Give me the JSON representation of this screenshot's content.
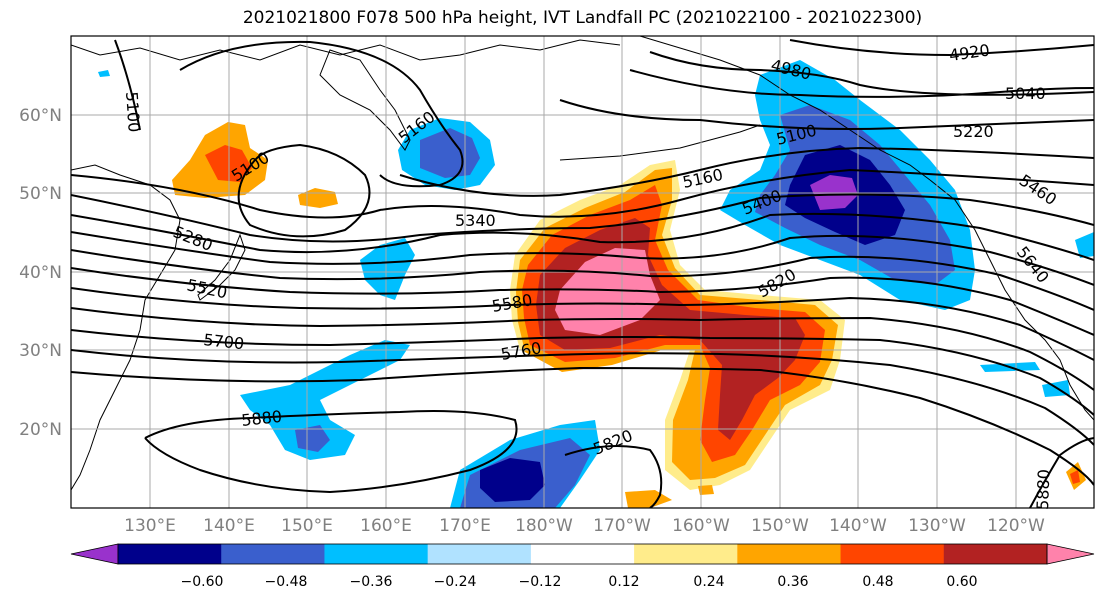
{
  "title": "2021021800 F078 500 hPa height, IVT Landfall PC (2021022100 - 2021022300)",
  "lat_labels": [
    "60°N",
    "50°N",
    "40°N",
    "30°N",
    "20°N"
  ],
  "lon_labels": [
    "130°E",
    "140°E",
    "150°E",
    "160°E",
    "170°E",
    "180°W",
    "170°W",
    "160°W",
    "150°W",
    "140°W",
    "130°W",
    "120°W"
  ],
  "contour_labels": [
    "4920",
    "4980",
    "5040",
    "5100",
    "5100",
    "5100",
    "5160",
    "5160",
    "5220",
    "5280",
    "5340",
    "5400",
    "5460",
    "5520",
    "5580",
    "5640",
    "5700",
    "5760",
    "5820",
    "5820",
    "5880",
    "5880"
  ],
  "colorbar": {
    "ticks": [
      "−0.60",
      "−0.48",
      "−0.36",
      "−0.24",
      "−0.12",
      "0.12",
      "0.24",
      "0.36",
      "0.48",
      "0.60"
    ],
    "colors": [
      "#9932CC",
      "#00008B",
      "#3A5FCD",
      "#00BFFF",
      "#B0E2FF",
      "#FFFFFF",
      "#FFEC8B",
      "#FFA500",
      "#FF4500",
      "#B22222",
      "#FF82AB"
    ]
  }
}
